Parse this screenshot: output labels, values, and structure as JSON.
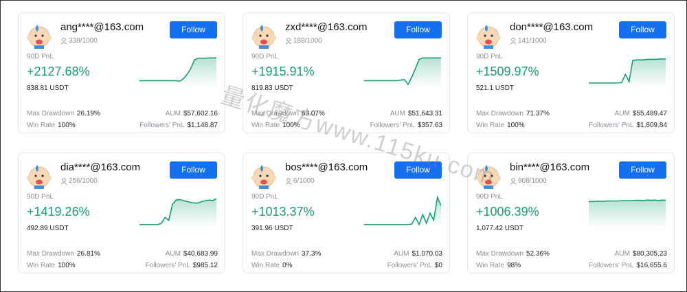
{
  "labels": {
    "pnl_period": "90D PnL",
    "follow": "Follow",
    "max_drawdown": "Max Drawdown",
    "aum": "AUM",
    "win_rate": "Win Rate",
    "followers_pnl": "Followers' PnL"
  },
  "watermark": "量化魔方www.115ku.com",
  "cards": [
    {
      "name": "ang****@163.com",
      "followers": "338/1000",
      "pnl": "+2127.68%",
      "usdt": "838.81 USDT",
      "max_drawdown": "26.19%",
      "aum": "$57,602.16",
      "win_rate": "100%",
      "followers_pnl": "$1,148.87"
    },
    {
      "name": "zxd****@163.com",
      "followers": "188/1000",
      "pnl": "+1915.91%",
      "usdt": "819.83 USDT",
      "max_drawdown": "63.07%",
      "aum": "$51,643.31",
      "win_rate": "100%",
      "followers_pnl": "$357.63"
    },
    {
      "name": "don****@163.com",
      "followers": "141/1000",
      "pnl": "+1509.97%",
      "usdt": "521.1 USDT",
      "max_drawdown": "71.37%",
      "aum": "$55,489.47",
      "win_rate": "100%",
      "followers_pnl": "$1,809.84"
    },
    {
      "name": "dia****@163.com",
      "followers": "256/1000",
      "pnl": "+1419.26%",
      "usdt": "492.89 USDT",
      "max_drawdown": "26.81%",
      "aum": "$40,683.99",
      "win_rate": "100%",
      "followers_pnl": "$985.12"
    },
    {
      "name": "bos****@163.com",
      "followers": "6/1000",
      "pnl": "+1013.37%",
      "usdt": "391.96 USDT",
      "max_drawdown": "37.3%",
      "aum": "$1,070.03",
      "win_rate": "0%",
      "followers_pnl": "$0"
    },
    {
      "name": "bin****@163.com",
      "followers": "908/1000",
      "pnl": "+1006.39%",
      "usdt": "1,077.42 USDT",
      "max_drawdown": "52.36%",
      "aum": "$80,305.23",
      "win_rate": "98%",
      "followers_pnl": "$16,655.6"
    }
  ]
}
